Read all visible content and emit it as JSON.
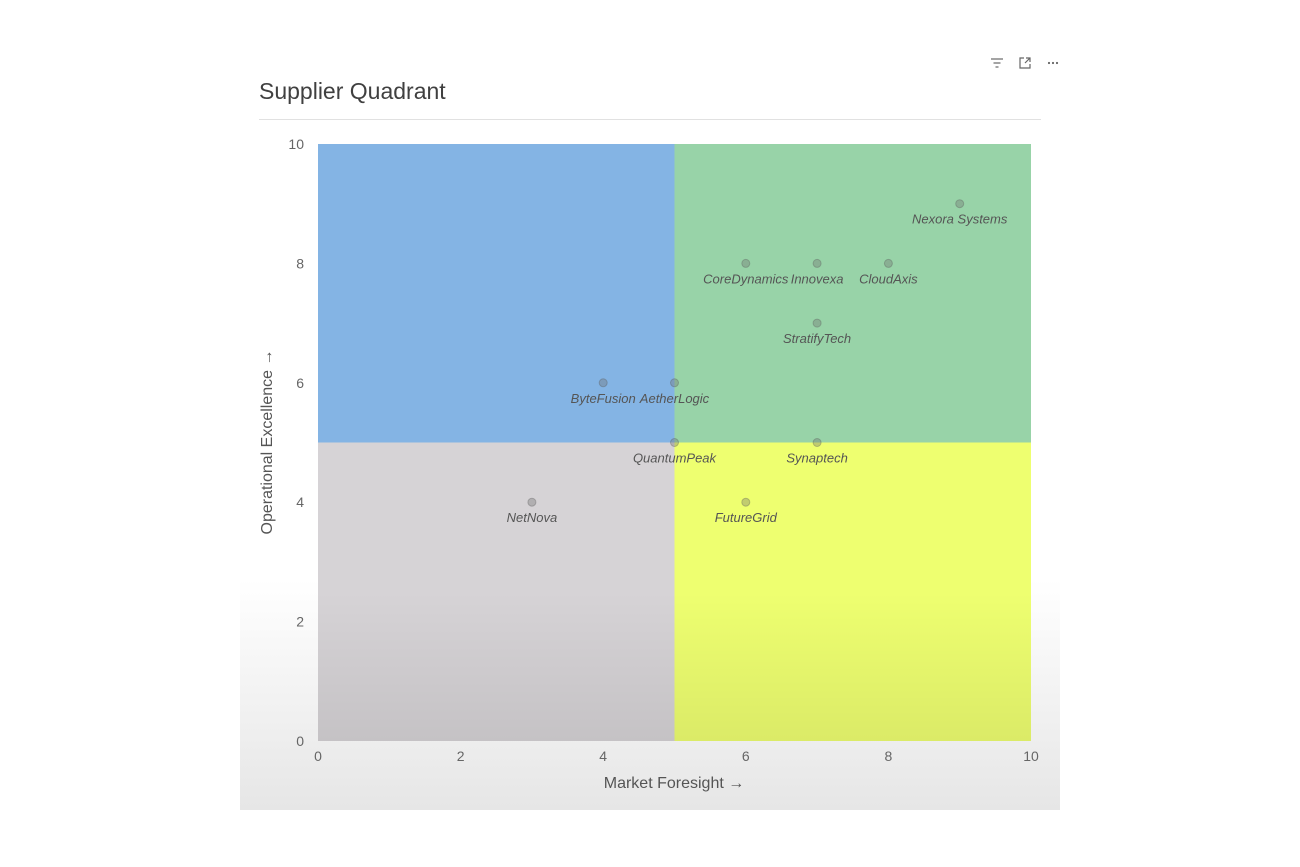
{
  "toolbar": {
    "icons": [
      "filter-icon",
      "focus-mode-icon",
      "more-options-icon"
    ]
  },
  "chart_data": {
    "type": "scatter",
    "title": "Supplier Quadrant",
    "xlabel": "Market Foresight →",
    "ylabel": "Operational Excellence →",
    "xlim": [
      0,
      10
    ],
    "ylim": [
      0,
      10
    ],
    "xticks": [
      0,
      2,
      4,
      6,
      8,
      10
    ],
    "yticks": [
      0,
      2,
      4,
      6,
      8,
      10
    ],
    "grid": false,
    "quadrants": [
      {
        "x": [
          0,
          5
        ],
        "y": [
          5,
          10
        ],
        "color": "#84b4e4"
      },
      {
        "x": [
          5,
          10
        ],
        "y": [
          5,
          10
        ],
        "color": "#98d3a8"
      },
      {
        "x": [
          0,
          5
        ],
        "y": [
          0,
          5
        ],
        "color": "#d6d3d6"
      },
      {
        "x": [
          5,
          10
        ],
        "y": [
          0,
          5
        ],
        "color": "#eeff70"
      }
    ],
    "points": [
      {
        "label": "Nexora Systems",
        "x": 9,
        "y": 9
      },
      {
        "label": "CoreDynamics",
        "x": 6,
        "y": 8
      },
      {
        "label": "Innovexa",
        "x": 7,
        "y": 8
      },
      {
        "label": "CloudAxis",
        "x": 8,
        "y": 8
      },
      {
        "label": "StratifyTech",
        "x": 7,
        "y": 7
      },
      {
        "label": "ByteFusion",
        "x": 4,
        "y": 6
      },
      {
        "label": "AetherLogic",
        "x": 5,
        "y": 6
      },
      {
        "label": "QuantumPeak",
        "x": 5,
        "y": 5
      },
      {
        "label": "Synaptech",
        "x": 7,
        "y": 5
      },
      {
        "label": "NetNova",
        "x": 3,
        "y": 4
      },
      {
        "label": "FutureGrid",
        "x": 6,
        "y": 4
      }
    ]
  }
}
